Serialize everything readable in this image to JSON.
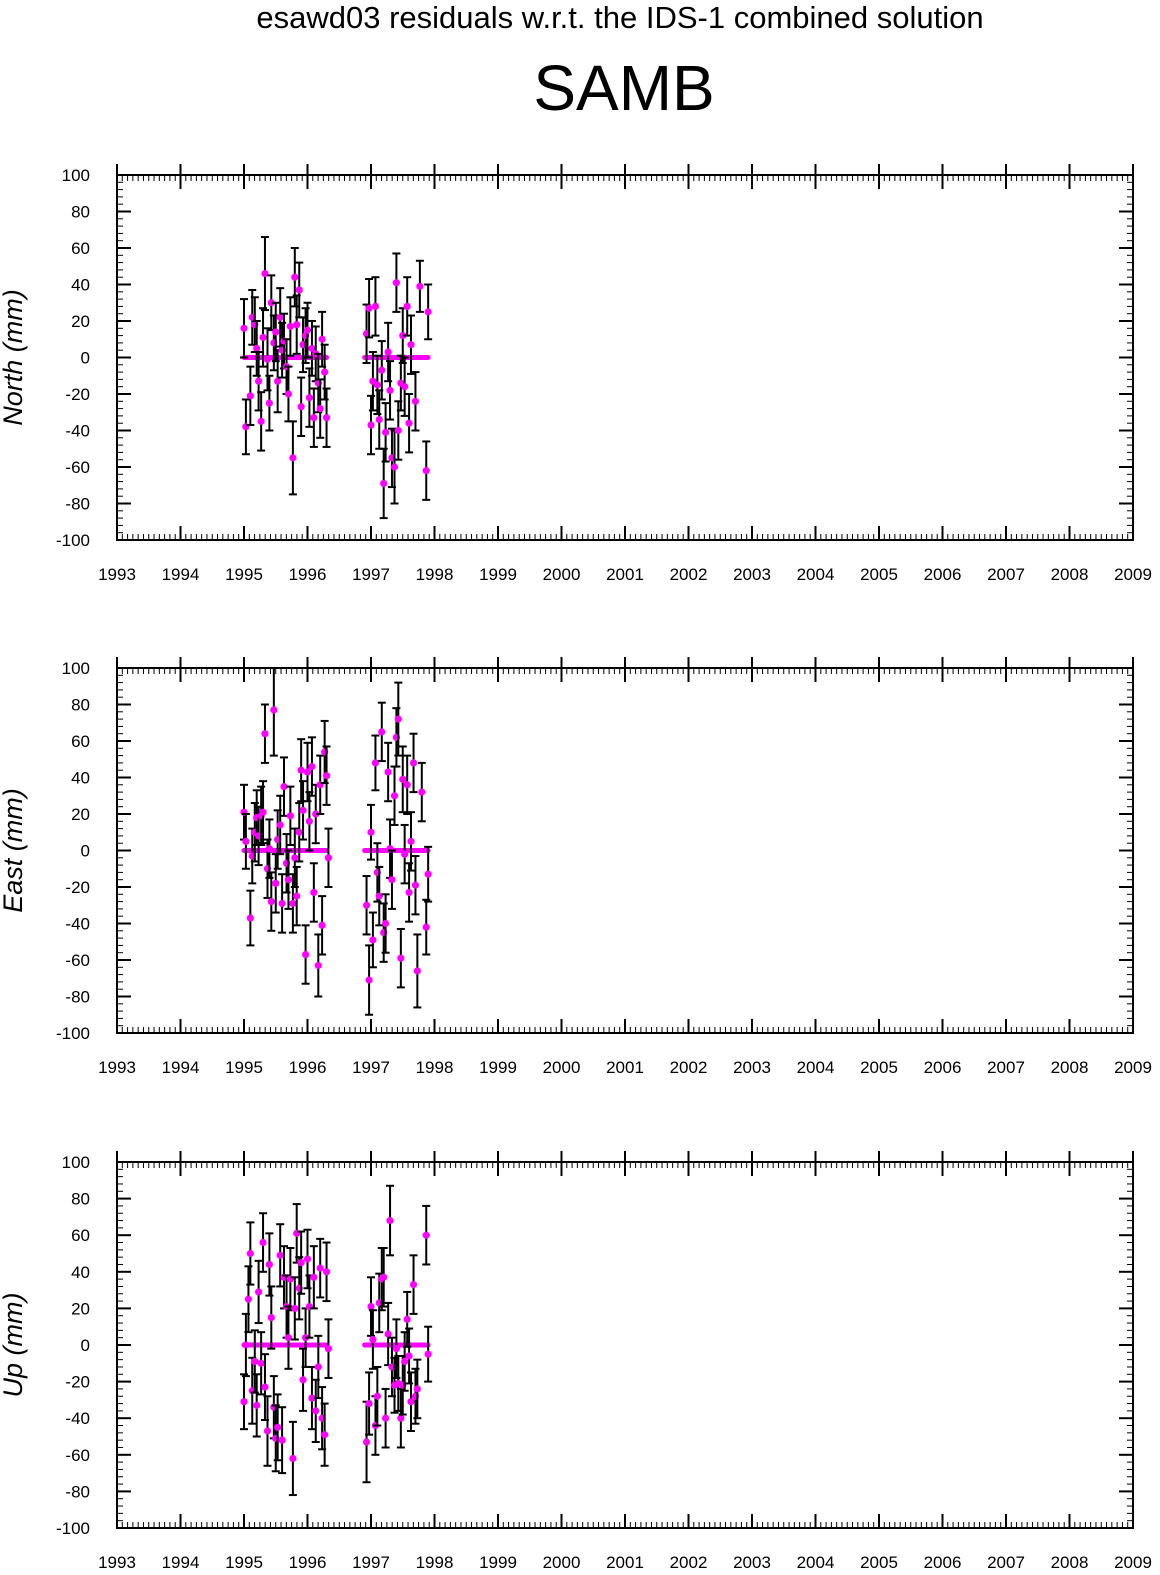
{
  "title": "esawd03 residuals w.r.t. the IDS-1 combined solution",
  "station": "SAMB",
  "colors": {
    "marker": "#ff00ff",
    "errorbar": "#000000",
    "zero_line": "#ff00ff",
    "axes": "#000000"
  },
  "chart_data": [
    {
      "type": "scatter",
      "ylabel": "North (mm)",
      "xlim": [
        1993,
        2009
      ],
      "ylim": [
        -100,
        100
      ],
      "x_ticks": [
        "1993",
        "1994",
        "1995",
        "1996",
        "1997",
        "1998",
        "1999",
        "2000",
        "2001",
        "2002",
        "2003",
        "2004",
        "2005",
        "2006",
        "2007",
        "2008",
        "2009"
      ],
      "y_ticks": [
        "100",
        "80",
        "60",
        "40",
        "20",
        "0",
        "-20",
        "-40",
        "-60",
        "-80",
        "-100"
      ],
      "zero_segments": [
        [
          1995.0,
          1996.3
        ],
        [
          1996.9,
          1997.9
        ]
      ],
      "points": [
        [
          1995.0,
          16,
          16
        ],
        [
          1995.03,
          -38,
          15
        ],
        [
          1995.1,
          -21,
          16
        ],
        [
          1995.13,
          22,
          15
        ],
        [
          1995.17,
          18,
          15
        ],
        [
          1995.2,
          5,
          15
        ],
        [
          1995.23,
          -13,
          16
        ],
        [
          1995.27,
          -35,
          16
        ],
        [
          1995.3,
          11,
          16
        ],
        [
          1995.33,
          46,
          20
        ],
        [
          1995.37,
          -1,
          17
        ],
        [
          1995.4,
          -25,
          15
        ],
        [
          1995.43,
          30,
          15
        ],
        [
          1995.47,
          8,
          15
        ],
        [
          1995.5,
          14,
          16
        ],
        [
          1995.53,
          -13,
          17
        ],
        [
          1995.57,
          22,
          16
        ],
        [
          1995.6,
          4,
          15
        ],
        [
          1995.63,
          9,
          15
        ],
        [
          1995.67,
          -5,
          15
        ],
        [
          1995.7,
          -20,
          15
        ],
        [
          1995.73,
          17,
          16
        ],
        [
          1995.77,
          -55,
          20
        ],
        [
          1995.8,
          44,
          16
        ],
        [
          1995.83,
          18,
          16
        ],
        [
          1995.87,
          37,
          15
        ],
        [
          1995.9,
          -27,
          16
        ],
        [
          1995.93,
          7,
          15
        ],
        [
          1995.97,
          12,
          15
        ],
        [
          1996.0,
          15,
          15
        ],
        [
          1996.03,
          -22,
          16
        ],
        [
          1996.07,
          5,
          15
        ],
        [
          1996.1,
          -33,
          16
        ],
        [
          1996.13,
          2,
          15
        ],
        [
          1996.17,
          -14,
          16
        ],
        [
          1996.2,
          -28,
          16
        ],
        [
          1996.23,
          10,
          15
        ],
        [
          1996.27,
          -8,
          15
        ],
        [
          1996.3,
          -33,
          16
        ],
        [
          1996.93,
          13,
          16
        ],
        [
          1996.97,
          27,
          16
        ],
        [
          1997.0,
          -37,
          16
        ],
        [
          1997.03,
          -13,
          16
        ],
        [
          1997.07,
          28,
          16
        ],
        [
          1997.1,
          -15,
          16
        ],
        [
          1997.13,
          -34,
          16
        ],
        [
          1997.17,
          -7,
          16
        ],
        [
          1997.2,
          -69,
          19
        ],
        [
          1997.23,
          -41,
          16
        ],
        [
          1997.27,
          3,
          16
        ],
        [
          1997.3,
          -18,
          16
        ],
        [
          1997.33,
          -55,
          16
        ],
        [
          1997.37,
          -60,
          20
        ],
        [
          1997.4,
          41,
          16
        ],
        [
          1997.43,
          -40,
          16
        ],
        [
          1997.47,
          -14,
          15
        ],
        [
          1997.5,
          12,
          15
        ],
        [
          1997.53,
          -16,
          16
        ],
        [
          1997.57,
          28,
          16
        ],
        [
          1997.6,
          -36,
          16
        ],
        [
          1997.63,
          7,
          16
        ],
        [
          1997.7,
          -24,
          16
        ],
        [
          1997.77,
          39,
          14
        ],
        [
          1997.87,
          -62,
          16
        ],
        [
          1997.9,
          25,
          15
        ]
      ]
    },
    {
      "type": "scatter",
      "ylabel": "East (mm)",
      "xlim": [
        1993,
        2009
      ],
      "ylim": [
        -100,
        100
      ],
      "x_ticks": [
        "1993",
        "1994",
        "1995",
        "1996",
        "1997",
        "1998",
        "1999",
        "2000",
        "2001",
        "2002",
        "2003",
        "2004",
        "2005",
        "2006",
        "2007",
        "2008",
        "2009"
      ],
      "y_ticks": [
        "100",
        "80",
        "60",
        "40",
        "20",
        "0",
        "-20",
        "-40",
        "-60",
        "-80",
        "-100"
      ],
      "zero_segments": [
        [
          1995.0,
          1996.3
        ],
        [
          1996.9,
          1997.9
        ]
      ],
      "points": [
        [
          1995.0,
          21,
          15
        ],
        [
          1995.03,
          5,
          15
        ],
        [
          1995.1,
          -37,
          15
        ],
        [
          1995.13,
          -3,
          15
        ],
        [
          1995.17,
          10,
          16
        ],
        [
          1995.2,
          18,
          15
        ],
        [
          1995.23,
          8,
          16
        ],
        [
          1995.27,
          19,
          16
        ],
        [
          1995.3,
          21,
          17
        ],
        [
          1995.33,
          64,
          16
        ],
        [
          1995.37,
          -10,
          16
        ],
        [
          1995.4,
          1,
          16
        ],
        [
          1995.43,
          -28,
          16
        ],
        [
          1995.47,
          77,
          25
        ],
        [
          1995.5,
          -18,
          16
        ],
        [
          1995.53,
          6,
          16
        ],
        [
          1995.57,
          14,
          16
        ],
        [
          1995.6,
          -29,
          16
        ],
        [
          1995.63,
          35,
          16
        ],
        [
          1995.67,
          -7,
          16
        ],
        [
          1995.7,
          -16,
          16
        ],
        [
          1995.73,
          19,
          16
        ],
        [
          1995.77,
          -29,
          16
        ],
        [
          1995.8,
          -4,
          16
        ],
        [
          1995.83,
          -25,
          16
        ],
        [
          1995.87,
          10,
          16
        ],
        [
          1995.9,
          44,
          17
        ],
        [
          1995.93,
          22,
          16
        ],
        [
          1995.97,
          -57,
          16
        ],
        [
          1996.0,
          43,
          16
        ],
        [
          1996.03,
          16,
          16
        ],
        [
          1996.07,
          46,
          16
        ],
        [
          1996.1,
          -23,
          16
        ],
        [
          1996.13,
          20,
          16
        ],
        [
          1996.17,
          -63,
          17
        ],
        [
          1996.2,
          36,
          16
        ],
        [
          1996.23,
          -41,
          16
        ],
        [
          1996.27,
          54,
          17
        ],
        [
          1996.3,
          41,
          16
        ],
        [
          1996.33,
          -4,
          16
        ],
        [
          1996.93,
          -30,
          16
        ],
        [
          1996.97,
          -71,
          19
        ],
        [
          1997.0,
          10,
          15
        ],
        [
          1997.03,
          -49,
          15
        ],
        [
          1997.07,
          48,
          15
        ],
        [
          1997.1,
          -12,
          16
        ],
        [
          1997.13,
          -25,
          16
        ],
        [
          1997.17,
          65,
          16
        ],
        [
          1997.2,
          -45,
          16
        ],
        [
          1997.23,
          -40,
          16
        ],
        [
          1997.27,
          43,
          16
        ],
        [
          1997.3,
          1,
          16
        ],
        [
          1997.33,
          -16,
          16
        ],
        [
          1997.37,
          30,
          16
        ],
        [
          1997.4,
          62,
          16
        ],
        [
          1997.43,
          72,
          20
        ],
        [
          1997.47,
          -59,
          16
        ],
        [
          1997.5,
          39,
          18
        ],
        [
          1997.53,
          -2,
          16
        ],
        [
          1997.57,
          36,
          16
        ],
        [
          1997.6,
          -23,
          16
        ],
        [
          1997.63,
          5,
          16
        ],
        [
          1997.67,
          48,
          16
        ],
        [
          1997.7,
          -19,
          16
        ],
        [
          1997.73,
          -66,
          20
        ],
        [
          1997.8,
          32,
          16
        ],
        [
          1997.87,
          -42,
          15
        ],
        [
          1997.9,
          -13,
          15
        ]
      ]
    },
    {
      "type": "scatter",
      "ylabel": "Up (mm)",
      "xlim": [
        1993,
        2009
      ],
      "ylim": [
        -100,
        100
      ],
      "x_ticks": [
        "1993",
        "1994",
        "1995",
        "1996",
        "1997",
        "1998",
        "1999",
        "2000",
        "2001",
        "2002",
        "2003",
        "2004",
        "2005",
        "2006",
        "2007",
        "2008",
        "2009"
      ],
      "y_ticks": [
        "100",
        "80",
        "60",
        "40",
        "20",
        "0",
        "-20",
        "-40",
        "-60",
        "-80",
        "-100"
      ],
      "zero_segments": [
        [
          1995.0,
          1996.3
        ],
        [
          1996.9,
          1997.9
        ]
      ],
      "points": [
        [
          1995.0,
          -31,
          15
        ],
        [
          1995.03,
          0,
          17
        ],
        [
          1995.07,
          25,
          18
        ],
        [
          1995.1,
          50,
          17
        ],
        [
          1995.13,
          -25,
          18
        ],
        [
          1995.17,
          -9,
          17
        ],
        [
          1995.2,
          -33,
          17
        ],
        [
          1995.23,
          29,
          17
        ],
        [
          1995.27,
          -10,
          17
        ],
        [
          1995.3,
          56,
          16
        ],
        [
          1995.33,
          -23,
          18
        ],
        [
          1995.37,
          -47,
          19
        ],
        [
          1995.4,
          44,
          17
        ],
        [
          1995.43,
          15,
          17
        ],
        [
          1995.47,
          -34,
          17
        ],
        [
          1995.5,
          -51,
          18
        ],
        [
          1995.53,
          -45,
          18
        ],
        [
          1995.57,
          49,
          17
        ],
        [
          1995.6,
          -52,
          18
        ],
        [
          1995.63,
          37,
          17
        ],
        [
          1995.67,
          21,
          17
        ],
        [
          1995.7,
          4,
          17
        ],
        [
          1995.73,
          36,
          17
        ],
        [
          1995.77,
          -62,
          20
        ],
        [
          1995.8,
          20,
          17
        ],
        [
          1995.83,
          61,
          16
        ],
        [
          1995.87,
          31,
          17
        ],
        [
          1995.9,
          45,
          17
        ],
        [
          1995.93,
          -19,
          17
        ],
        [
          1995.97,
          4,
          16
        ],
        [
          1996.0,
          47,
          16
        ],
        [
          1996.03,
          21,
          17
        ],
        [
          1996.07,
          -29,
          17
        ],
        [
          1996.1,
          37,
          17
        ],
        [
          1996.13,
          -36,
          17
        ],
        [
          1996.17,
          -12,
          17
        ],
        [
          1996.2,
          42,
          16
        ],
        [
          1996.23,
          -40,
          17
        ],
        [
          1996.27,
          -49,
          17
        ],
        [
          1996.3,
          40,
          16
        ],
        [
          1996.33,
          -2,
          16
        ],
        [
          1996.93,
          -53,
          22
        ],
        [
          1996.97,
          -32,
          17
        ],
        [
          1997.0,
          21,
          16
        ],
        [
          1997.03,
          3,
          16
        ],
        [
          1997.07,
          -44,
          16
        ],
        [
          1997.1,
          -28,
          16
        ],
        [
          1997.13,
          23,
          16
        ],
        [
          1997.17,
          36,
          17
        ],
        [
          1997.2,
          37,
          16
        ],
        [
          1997.23,
          -40,
          16
        ],
        [
          1997.27,
          6,
          17
        ],
        [
          1997.3,
          68,
          19
        ],
        [
          1997.33,
          -12,
          16
        ],
        [
          1997.37,
          -22,
          15
        ],
        [
          1997.4,
          -2,
          16
        ],
        [
          1997.43,
          -21,
          15
        ],
        [
          1997.47,
          -40,
          16
        ],
        [
          1997.5,
          -22,
          16
        ],
        [
          1997.53,
          -9,
          16
        ],
        [
          1997.57,
          14,
          15
        ],
        [
          1997.6,
          -6,
          15
        ],
        [
          1997.63,
          -31,
          16
        ],
        [
          1997.67,
          33,
          16
        ],
        [
          1997.7,
          -28,
          15
        ],
        [
          1997.73,
          -24,
          16
        ],
        [
          1997.87,
          60,
          16
        ],
        [
          1997.9,
          -5,
          15
        ]
      ]
    }
  ]
}
